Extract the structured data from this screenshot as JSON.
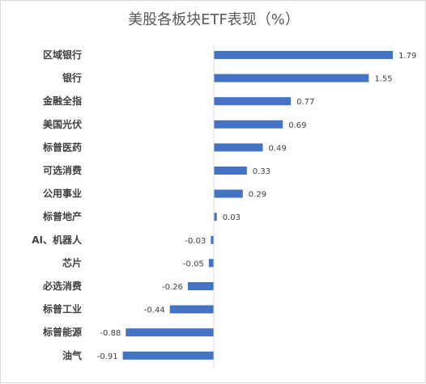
{
  "chart_data": {
    "type": "bar",
    "orientation": "horizontal",
    "title": "美股各板块ETF表现（%）",
    "categories": [
      "区域银行",
      "银行",
      "金融全指",
      "美国光伏",
      "标普医药",
      "可选消费",
      "公用事业",
      "标普地产",
      "AI、机器人",
      "芯片",
      "必选消费",
      "标普工业",
      "标普能源",
      "油气"
    ],
    "values": [
      1.79,
      1.55,
      0.77,
      0.69,
      0.49,
      0.33,
      0.29,
      0.03,
      -0.03,
      -0.05,
      -0.26,
      -0.44,
      -0.88,
      -0.91
    ],
    "value_labels": [
      "1.79",
      "1.55",
      "0.77",
      "0.69",
      "0.49",
      "0.33",
      "0.29",
      "0.03",
      "-0.03",
      "-0.05",
      "-0.26",
      "-0.44",
      "-0.88",
      "-0.91"
    ],
    "bar_color": "#4472C4",
    "xlim": [
      -1.0,
      2.0
    ],
    "grid": false,
    "legend": "none"
  }
}
